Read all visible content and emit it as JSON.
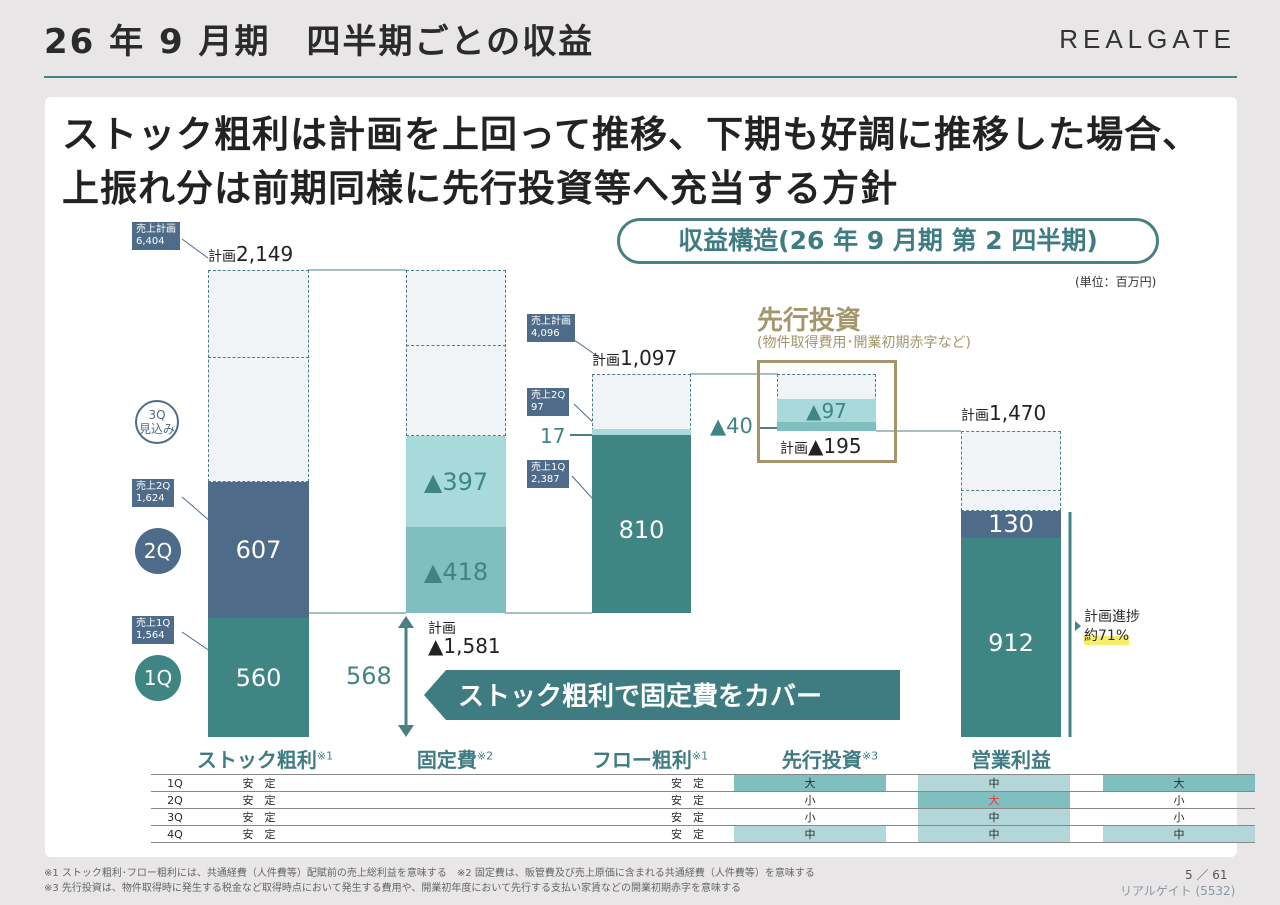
{
  "header": {
    "title": "26 年 9 月期　四半期ごとの収益",
    "brand": "REALGATE"
  },
  "headline": {
    "line1": "ストック粗利は計画を上回って推移、下期も好調に推移した場合、",
    "line2": "上振れ分は前期同様に先行投資等へ充当する方針"
  },
  "structure_label": "収益構造(26 年 9 月期 第 2 四半期)",
  "unit": "(単位：百万円)",
  "stock": {
    "plan": "2,149",
    "q1": "560",
    "q2": "607",
    "q3": "3Q\n見込み",
    "tag_plan": "売上計画\n6,404",
    "tag_q2": "売上2Q\n1,624",
    "tag_q1": "売上1Q\n1,564",
    "circle_q2": "2Q",
    "circle_q1": "1Q"
  },
  "fixed": {
    "q2": "▲397",
    "q1": "▲418",
    "plan_label": "計画",
    "plan_value": "▲1,581",
    "cover": "568",
    "cover_text": "ストック粗利で固定費をカバー"
  },
  "flow": {
    "plan": "1,097",
    "q1": "810",
    "q2": "17",
    "tag_plan": "売上計画\n4,096",
    "tag_q2": "売上2Q\n97",
    "tag_q1": "売上1Q\n2,387",
    "delta": "▲40"
  },
  "invest": {
    "title": "先行投資",
    "subtitle": "(物件取得費用･開業初期赤字など)",
    "value": "▲97",
    "plan": "▲195"
  },
  "op": {
    "plan": "1,470",
    "q2": "130",
    "q1": "912",
    "progress1": "計画進捗",
    "progress2": "約71%"
  },
  "plan_word": "計画",
  "categories": [
    {
      "name": "ストック粗利",
      "mark": "※1"
    },
    {
      "name": "固定費",
      "mark": "※2"
    },
    {
      "name": "フロー粗利",
      "mark": "※1"
    },
    {
      "name": "先行投資",
      "mark": "※3"
    },
    {
      "name": "営業利益",
      "mark": ""
    }
  ],
  "rows": [
    {
      "q": "1Q",
      "stock": "安　定",
      "fixed": "安　定",
      "flow": "大",
      "invest": "中",
      "op": "大"
    },
    {
      "q": "2Q",
      "stock": "安　定",
      "fixed": "安　定",
      "flow": "小",
      "invest": "大",
      "op": "小"
    },
    {
      "q": "3Q",
      "stock": "安　定",
      "fixed": "安　定",
      "flow": "小",
      "invest": "中",
      "op": "小"
    },
    {
      "q": "4Q",
      "stock": "安　定",
      "fixed": "安　定",
      "flow": "中",
      "invest": "中",
      "op": "中"
    }
  ],
  "footnotes": {
    "line1": "※1 ストック粗利･フロー粗利には、共通経費（人件費等）配賦前の売上総利益を意味する　※2 固定費は、販管費及び売上原価に含まれる共通経費（人件費等）を意味する",
    "line2": "※3 先行投資は、物件取得時に発生する税金など取得時点において発生する費用や、開業初年度において先行する支払い家賃などの開業初期赤字を意味する"
  },
  "page": {
    "current": "5",
    "total": "61",
    "code": "リアルゲイト (5532)"
  },
  "colors": {
    "teal": "#3f8584",
    "slate": "#4e6c89",
    "light_teal": "#a8dadb",
    "mid_teal": "#7fbfbf",
    "gold": "#a3966b"
  }
}
